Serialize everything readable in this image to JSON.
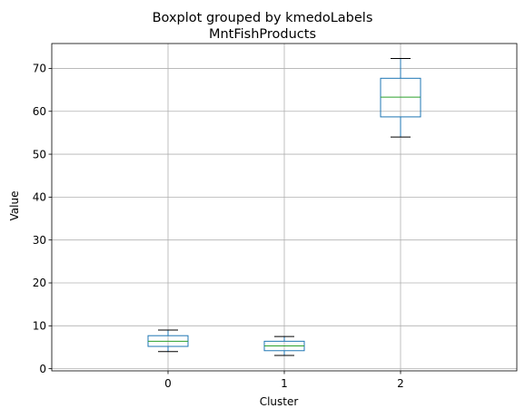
{
  "figure": {
    "suptitle": "Boxplot grouped by kmedoLabels",
    "title": "MntFishProducts"
  },
  "chart_data": {
    "type": "box",
    "title": "MntFishProducts",
    "suptitle": "Boxplot grouped by kmedoLabels",
    "xlabel": "Cluster",
    "ylabel": "Value",
    "categories": [
      "0",
      "1",
      "2"
    ],
    "ylim": [
      -0.5,
      75.8
    ],
    "yticks": [
      0,
      10,
      20,
      30,
      40,
      50,
      60,
      70
    ],
    "grid": true,
    "boxes": [
      {
        "category": "0",
        "whislo": 4,
        "q1": 5.2,
        "med": 6.4,
        "q3": 7.7,
        "whishi": 9
      },
      {
        "category": "1",
        "whislo": 3.1,
        "q1": 4.2,
        "med": 5.3,
        "q3": 6.4,
        "whishi": 7.5
      },
      {
        "category": "2",
        "whislo": 54,
        "q1": 58.7,
        "med": 63.3,
        "q3": 67.7,
        "whishi": 72.3
      }
    ],
    "colors": {
      "box": "#1f77b4",
      "median": "#2ca02c",
      "whisker": "#1f77b4",
      "cap": "#000000",
      "grid": "#b0b0b0",
      "axes": "#000000"
    }
  }
}
